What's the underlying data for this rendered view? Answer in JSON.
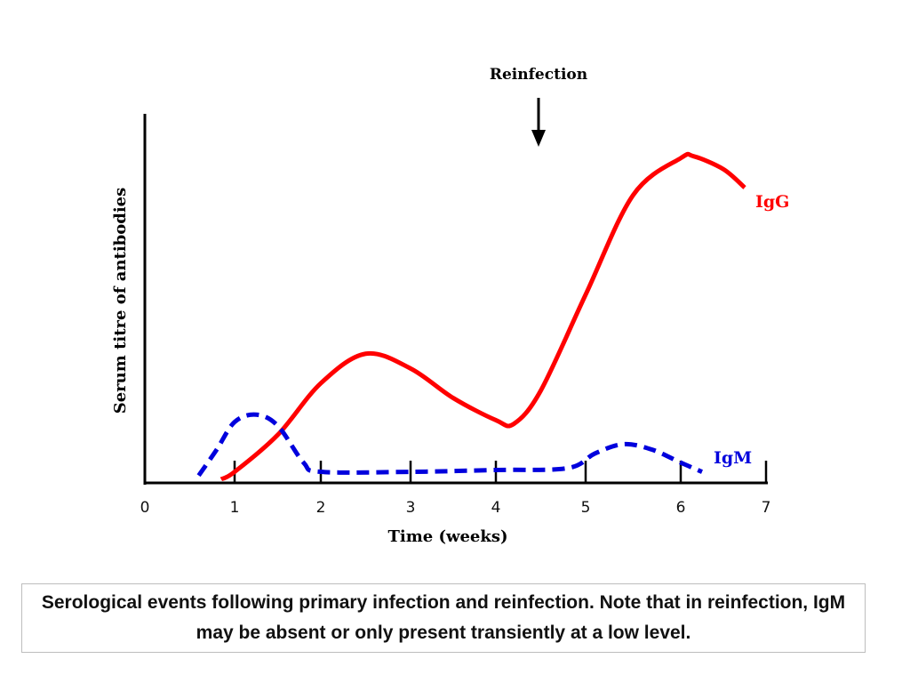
{
  "chart_data": {
    "type": "line",
    "title": "",
    "xlabel": "Time (weeks)",
    "ylabel": "Serum titre of antibodies",
    "xlim": [
      0,
      7
    ],
    "ylim": [
      0,
      100
    ],
    "x_ticks": [
      "0",
      "1",
      "2",
      "3",
      "4",
      "5",
      "6",
      "7"
    ],
    "y_ticks": [],
    "grid": false,
    "annotation": {
      "label": "Reinfection",
      "x": 4.45,
      "marker": "down-arrow"
    },
    "series": [
      {
        "name": "IgG",
        "color": "#ff0000",
        "style": "solid",
        "x": [
          0.85,
          1,
          1.5,
          2,
          2.5,
          3,
          3.5,
          4,
          4.2,
          4.5,
          5,
          5.5,
          6,
          6.15,
          6.5,
          6.75
        ],
        "y": [
          1,
          3,
          13,
          27,
          35,
          31,
          23,
          17,
          16,
          25,
          51,
          78,
          88,
          88.5,
          85,
          80
        ]
      },
      {
        "name": "IgM",
        "color": "#0000dd",
        "style": "dashed",
        "x": [
          0.6,
          0.8,
          1,
          1.25,
          1.5,
          1.8,
          2,
          3,
          4,
          4.8,
          5.1,
          5.4,
          5.7,
          6,
          6.25
        ],
        "y": [
          2,
          9,
          16.5,
          18.5,
          15.5,
          5.5,
          3,
          3,
          3.5,
          4,
          8,
          10.5,
          9,
          5.5,
          3
        ]
      }
    ]
  },
  "caption": "Serological events following primary infection and reinfection. Note that in reinfection, IgM may be absent or only present transiently at a low level."
}
